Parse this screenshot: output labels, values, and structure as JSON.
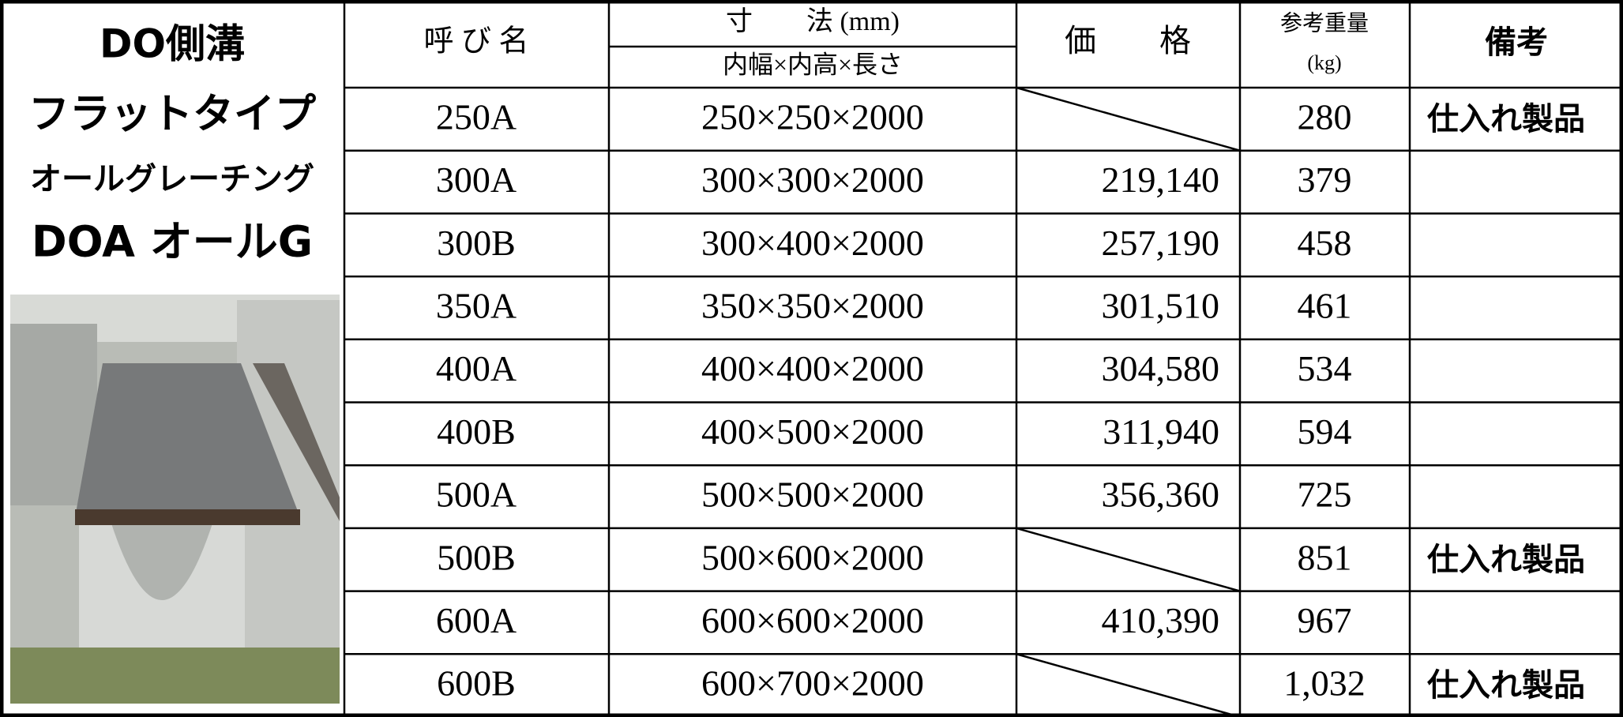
{
  "left": {
    "titles": [
      "DO側溝",
      "フラットタイプ",
      "オールグレーチング",
      "DOA オールG"
    ]
  },
  "table": {
    "header": {
      "name": "呼 び 名",
      "dimension": "寸　　法 (mm)",
      "dimension_sub": "内幅×内高×長さ",
      "price": "価　　格",
      "weight": "参考重量",
      "weight_unit": "(kg)",
      "note": "備考"
    },
    "rows": [
      [
        "250A",
        "250×250×2000",
        null,
        "280",
        "仕入れ製品"
      ],
      [
        "300A",
        "300×300×2000",
        "219,140",
        "379",
        null
      ],
      [
        "300B",
        "300×400×2000",
        "257,190",
        "458",
        null
      ],
      [
        "350A",
        "350×350×2000",
        "301,510",
        "461",
        null
      ],
      [
        "400A",
        "400×400×2000",
        "304,580",
        "534",
        null
      ],
      [
        "400B",
        "400×500×2000",
        "311,940",
        "594",
        null
      ],
      [
        "500A",
        "500×500×2000",
        "356,360",
        "725",
        null
      ],
      [
        "500B",
        "500×600×2000",
        null,
        "851",
        "仕入れ製品"
      ],
      [
        "600A",
        "600×600×2000",
        "410,390",
        "967",
        null
      ],
      [
        "600B",
        "600×700×2000",
        null,
        "1,032",
        "仕入れ製品"
      ]
    ]
  }
}
